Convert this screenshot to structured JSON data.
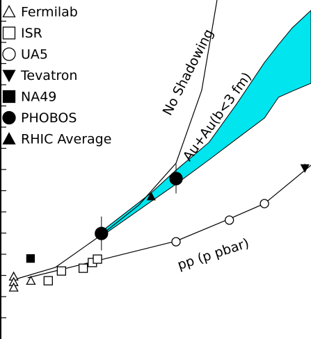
{
  "chart_data": {
    "type": "scatter",
    "x_scale": "log",
    "xlim": [
      18,
      600
    ],
    "ylim": [
      0,
      16
    ],
    "yticks": [
      1,
      2,
      3,
      4,
      5,
      6,
      7,
      8,
      9,
      10,
      11,
      12,
      13,
      14,
      15
    ],
    "series": [
      {
        "name": "Fermilab",
        "marker": "triangle-up",
        "filled": false,
        "color": "#000000",
        "x": [
          21,
          21,
          21,
          25.5
        ],
        "y": [
          2.95,
          2.69,
          2.43,
          2.75
        ]
      },
      {
        "name": "ISR",
        "marker": "square",
        "filled": false,
        "color": "#000000",
        "x": [
          31,
          36,
          46,
          51,
          54
        ],
        "y": [
          2.75,
          3.21,
          3.34,
          3.61,
          3.77
        ]
      },
      {
        "name": "UA5",
        "marker": "circle",
        "filled": false,
        "color": "#000000",
        "x": [
          131,
          239,
          355
        ],
        "y": [
          4.59,
          5.61,
          6.39
        ]
      },
      {
        "name": "Tevatron",
        "marker": "triangle-down",
        "filled": true,
        "color": "#000000",
        "x": [
          560
        ],
        "y": [
          8.07
        ],
        "err": [
          0.2
        ]
      },
      {
        "name": "NA49",
        "marker": "square",
        "filled": true,
        "color": "#000000",
        "x": [
          25.4
        ],
        "y": [
          3.8
        ]
      },
      {
        "name": "PHOBOS",
        "marker": "circle",
        "filled": true,
        "color": "#000000",
        "x": [
          56.5,
          131
        ],
        "y": [
          4.98,
          7.57
        ],
        "err": [
          0.8,
          0.7
        ]
      },
      {
        "name": "RHIC Average",
        "marker": "triangle-up",
        "filled": true,
        "color": "#000000",
        "x": [
          99
        ],
        "y": [
          6.72
        ]
      }
    ],
    "curves": [
      {
        "label": "No Shadowing",
        "color": "#000000",
        "x": [
          21.4,
          33.6,
          56.6,
          86.3,
          131,
          175,
          208
        ],
        "y": [
          2.82,
          3.38,
          4.92,
          6.33,
          8.3,
          11.74,
          16
        ]
      },
      {
        "label": "pp (p pbar)",
        "color": "#000000",
        "x": [
          24.6,
          54,
          131,
          239,
          355,
          600
        ],
        "y": [
          2.89,
          3.7,
          4.62,
          5.67,
          6.39,
          8.2
        ]
      }
    ],
    "band": {
      "label": "Au+Au(b<3 fm)",
      "color": "#00e5ee",
      "x": [
        56.6,
        98.8,
        131,
        190,
        259,
        355,
        416,
        486,
        600
      ],
      "upper": [
        5.08,
        6.89,
        7.97,
        9.28,
        11.08,
        13.05,
        13.9,
        14.69,
        15.51
      ],
      "lower": [
        4.85,
        6.49,
        7.31,
        8.46,
        9.44,
        10.43,
        11.41,
        11.7,
        12.07
      ]
    }
  }
}
